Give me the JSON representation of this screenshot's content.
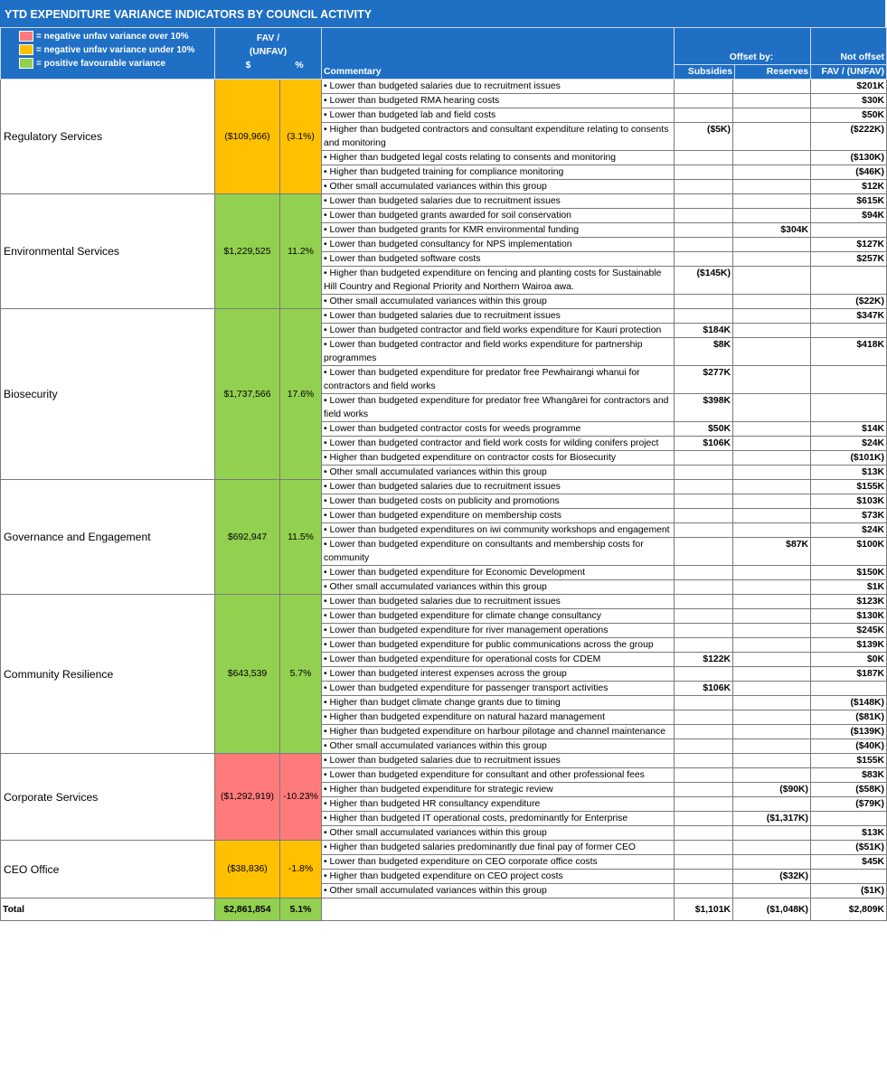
{
  "title": "YTD EXPENDITURE VARIANCE INDICATORS BY COUNCIL ACTIVITY",
  "legend": [
    {
      "color": "#ff7b7b",
      "label": "= negative unfav variance over 10%"
    },
    {
      "color": "#ffc000",
      "label": "= negative unfav variance under 10%"
    },
    {
      "color": "#92d050",
      "label": "= positive favourable variance"
    }
  ],
  "header": {
    "fav_line1": "FAV /",
    "fav_line2": "(UNFAV)",
    "dollar": "$",
    "pct": "%",
    "commentary": "Commentary",
    "offset_by": "Offset by:",
    "subsidies": "Subsidies",
    "reserves": "Reserves",
    "not_offset": "Not offset",
    "not_offset_sub": "FAV / (UNFAV)"
  },
  "activities": [
    {
      "name": "Regulatory Services",
      "amount": "($109,966)",
      "pct": "(3.1%)",
      "color": "amber",
      "rows": [
        {
          "c": "• Lower than budgeted salaries due to recruitment issues",
          "s": "",
          "r": "",
          "n": "$201K"
        },
        {
          "c": "• Lower than budgeted RMA hearing costs",
          "s": "",
          "r": "",
          "n": "$30K"
        },
        {
          "c": "• Lower than budgeted lab and field costs",
          "s": "",
          "r": "",
          "n": "$50K"
        },
        {
          "c": "• Higher than budgeted contractors and consultant expenditure relating to consents and monitoring",
          "s": "($5K)",
          "r": "",
          "n": "($222K)"
        },
        {
          "c": "• Higher than budgeted legal costs relating to consents and monitoring",
          "s": "",
          "r": "",
          "n": "($130K)"
        },
        {
          "c": "• Higher than budgeted training for compliance monitoring",
          "s": "",
          "r": "",
          "n": "($46K)"
        },
        {
          "c": "• Other small accumulated variances within this group",
          "s": "",
          "r": "",
          "n": "$12K"
        }
      ]
    },
    {
      "name": "Environmental Services",
      "amount": "$1,229,525",
      "pct": "11.2%",
      "color": "green",
      "rows": [
        {
          "c": "• Lower than budgeted salaries due to recruitment issues",
          "s": "",
          "r": "",
          "n": "$615K"
        },
        {
          "c": "• Lower than budgeted grants awarded for soil conservation",
          "s": "",
          "r": "",
          "n": "$94K"
        },
        {
          "c": "• Lower than budgeted grants for KMR environmental funding",
          "s": "",
          "r": "$304K",
          "n": ""
        },
        {
          "c": "• Lower than budgeted consultancy for NPS implementation",
          "s": "",
          "r": "",
          "n": "$127K"
        },
        {
          "c": "• Lower than budgeted software costs",
          "s": "",
          "r": "",
          "n": "$257K"
        },
        {
          "c": "• Higher than budgeted expenditure on fencing and planting costs for Sustainable Hill Country and Regional Priority and Northern Wairoa awa.",
          "s": "($145K)",
          "r": "",
          "n": ""
        },
        {
          "c": "• Other small accumulated variances within this group",
          "s": "",
          "r": "",
          "n": "($22K)"
        }
      ]
    },
    {
      "name": "Biosecurity",
      "amount": "$1,737,566",
      "pct": "17.6%",
      "color": "green",
      "rows": [
        {
          "c": "• Lower than budgeted salaries due to recruitment issues",
          "s": "",
          "r": "",
          "n": "$347K"
        },
        {
          "c": "• Lower than budgeted contractor and field works expenditure for Kauri protection",
          "s": "$184K",
          "r": "",
          "n": ""
        },
        {
          "c": "• Lower than budgeted contractor and field works expenditure for partnership programmes",
          "s": "$8K",
          "r": "",
          "n": "$418K"
        },
        {
          "c": "• Lower than budgeted expenditure for predator free Pewhairangi whanui for contractors and field works",
          "s": "$277K",
          "r": "",
          "n": ""
        },
        {
          "c": "• Lower than budgeted expenditure for predator free Whangārei for contractors and field works",
          "s": "$398K",
          "r": "",
          "n": ""
        },
        {
          "c": "• Lower than budgeted contractor costs for weeds programme",
          "s": "$50K",
          "r": "",
          "n": "$14K"
        },
        {
          "c": "• Lower than budgeted contractor and field work costs for wilding conifers project",
          "s": "$106K",
          "r": "",
          "n": "$24K"
        },
        {
          "c": "• Higher than budgeted expenditure on contractor costs for Biosecurity",
          "s": "",
          "r": "",
          "n": "($101K)"
        },
        {
          "c": "• Other small accumulated variances within this group",
          "s": "",
          "r": "",
          "n": "$13K"
        }
      ]
    },
    {
      "name": "Governance and Engagement",
      "amount": "$692,947",
      "pct": "11.5%",
      "color": "green",
      "rows": [
        {
          "c": "• Lower than budgeted salaries due to recruitment issues",
          "s": "",
          "r": "",
          "n": "$155K"
        },
        {
          "c": "• Lower than budgeted costs on publicity and promotions",
          "s": "",
          "r": "",
          "n": "$103K"
        },
        {
          "c": "• Lower than budgeted expenditure on membership costs",
          "s": "",
          "r": "",
          "n": "$73K"
        },
        {
          "c": "• Lower than budgeted expenditures on iwi community workshops and engagement",
          "s": "",
          "r": "",
          "n": "$24K"
        },
        {
          "c": "• Lower than budgeted expenditure on consultants and membership costs for community",
          "s": "",
          "r": "$87K",
          "n": "$100K"
        },
        {
          "c": "• Lower than budgeted expenditure for Economic Development",
          "s": "",
          "r": "",
          "n": "$150K"
        },
        {
          "c": "• Other small accumulated variances within this group",
          "s": "",
          "r": "",
          "n": "$1K"
        }
      ]
    },
    {
      "name": "Community Resilience",
      "amount": "$643,539",
      "pct": "5.7%",
      "color": "green",
      "rows": [
        {
          "c": "• Lower than budgeted salaries due to recruitment issues",
          "s": "",
          "r": "",
          "n": "$123K"
        },
        {
          "c": "• Lower than budgeted expenditure for climate change consultancy",
          "s": "",
          "r": "",
          "n": "$130K"
        },
        {
          "c": "• Lower than budgeted expenditure for river management operations",
          "s": "",
          "r": "",
          "n": "$245K"
        },
        {
          "c": "• Lower than budgeted expenditure for public communications across the group",
          "s": "",
          "r": "",
          "n": "$139K"
        },
        {
          "c": "• Lower than budgeted expenditure for operational costs for CDEM",
          "s": "$122K",
          "r": "",
          "n": "$0K"
        },
        {
          "c": "• Lower than budgeted interest expenses across the group",
          "s": "",
          "r": "",
          "n": "$187K"
        },
        {
          "c": "• Lower than budgeted expenditure for passenger transport activities",
          "s": "$106K",
          "r": "",
          "n": ""
        },
        {
          "c": "• Higher than budget climate change grants due to timing",
          "s": "",
          "r": "",
          "n": "($148K)"
        },
        {
          "c": "• Higher than budgeted expenditure on natural hazard management",
          "s": "",
          "r": "",
          "n": "($81K)"
        },
        {
          "c": "• Higher than budgeted expenditure on harbour pilotage and channel maintenance",
          "s": "",
          "r": "",
          "n": "($139K)"
        },
        {
          "c": "• Other small accumulated variances within this group",
          "s": "",
          "r": "",
          "n": "($40K)"
        }
      ]
    },
    {
      "name": "Corporate Services",
      "amount": "($1,292,919)",
      "pct": "-10.23%",
      "color": "red",
      "rows": [
        {
          "c": "• Lower than budgeted salaries due to recruitment issues",
          "s": "",
          "r": "",
          "n": "$155K"
        },
        {
          "c": "• Lower than budgeted expenditure for  consultant and other professional fees",
          "s": "",
          "r": "",
          "n": "$83K"
        },
        {
          "c": "• Higher than budgeted expenditure for strategic review",
          "s": "",
          "r": "($90K)",
          "n": "($58K)"
        },
        {
          "c": "• Higher than budgeted HR consultancy expenditure",
          "s": "",
          "r": "",
          "n": "($79K)"
        },
        {
          "c": "• Higher than budgeted IT operational costs, predominantly for Enterprise",
          "s": "",
          "r": "($1,317K)",
          "n": ""
        },
        {
          "c": "• Other small accumulated variances within this group",
          "s": "",
          "r": "",
          "n": "$13K"
        }
      ]
    },
    {
      "name": "CEO Office",
      "amount": "($38,836)",
      "pct": "-1.8%",
      "color": "amber",
      "rows": [
        {
          "c": "• Higher than budgeted salaries predominantly due final pay of former CEO",
          "s": "",
          "r": "",
          "n": "($51K)"
        },
        {
          "c": "• Lower than budgeted expenditure on CEO corporate office costs",
          "s": "",
          "r": "",
          "n": "$45K"
        },
        {
          "c": "• Higher than budgeted expenditure on CEO project  costs",
          "s": "",
          "r": "($32K)",
          "n": ""
        },
        {
          "c": "• Other small accumulated variances within this group",
          "s": "",
          "r": "",
          "n": "($1K)"
        }
      ]
    }
  ],
  "total": {
    "label": "Total",
    "amount": "$2,861,854",
    "pct": "5.1%",
    "subsidies": "$1,101K",
    "reserves": "($1,048K)",
    "not_offset": "$2,809K"
  }
}
